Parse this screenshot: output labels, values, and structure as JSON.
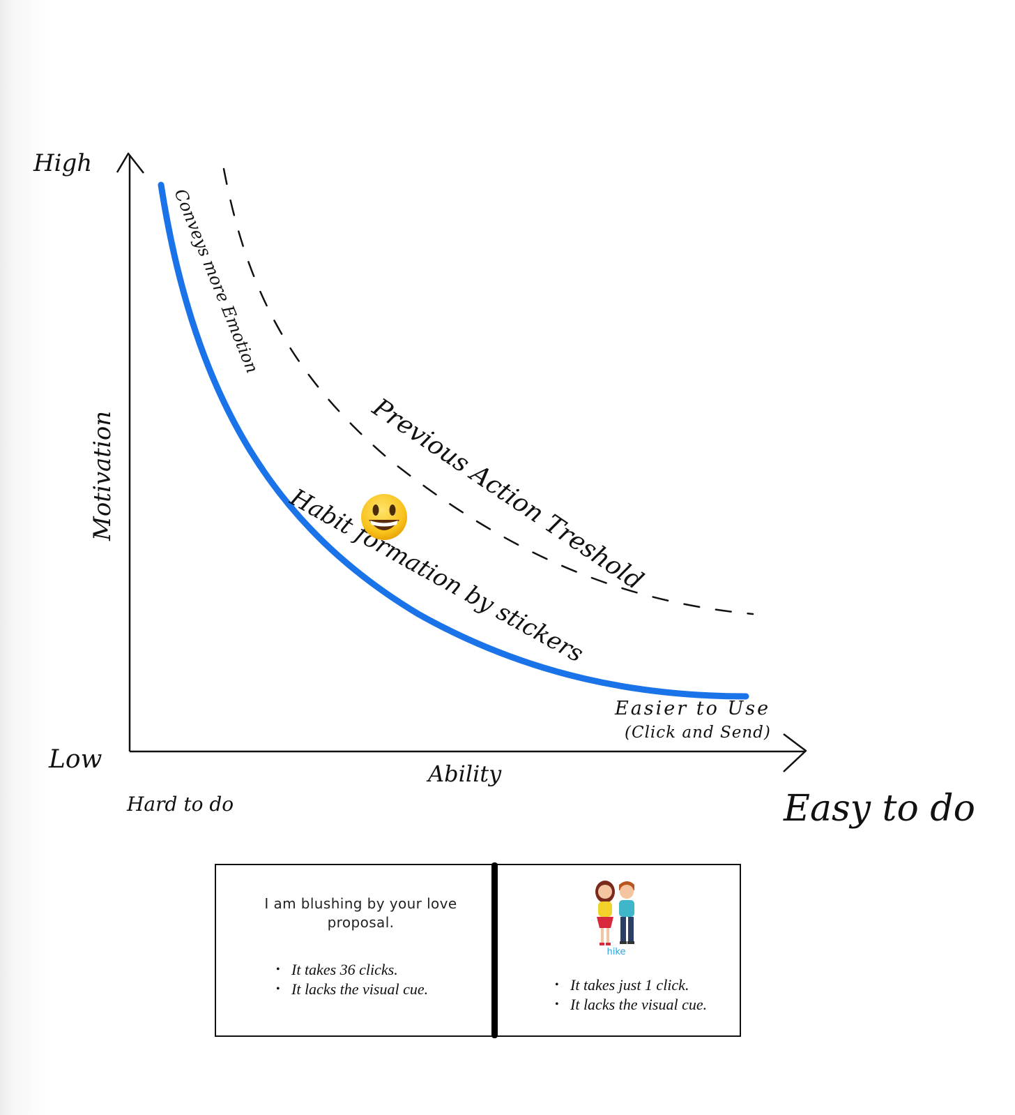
{
  "diagram": {
    "y_axis": {
      "label": "Motivation",
      "high": "High",
      "low": "Low"
    },
    "x_axis": {
      "label": "Ability",
      "start": "Hard to do",
      "end": "Easy to do"
    },
    "curves": {
      "habit": {
        "label": "Habit formation by stickers",
        "top_annotation": "Conveys more Emotion",
        "end_annotation_line1": "Easier to Use",
        "end_annotation_line2": "(Click and Send)",
        "color": "#1a73e8"
      },
      "threshold": {
        "label": "Previous Action Treshold"
      }
    },
    "emoji": "😃"
  },
  "comparison": {
    "left": {
      "message": "I am blushing by your love proposal.",
      "bullets": [
        "It takes 36 clicks.",
        "It lacks the visual cue."
      ]
    },
    "right": {
      "sticker_brand": "hike",
      "bullets": [
        "It takes just 1 click.",
        "It lacks the visual cue."
      ]
    }
  }
}
